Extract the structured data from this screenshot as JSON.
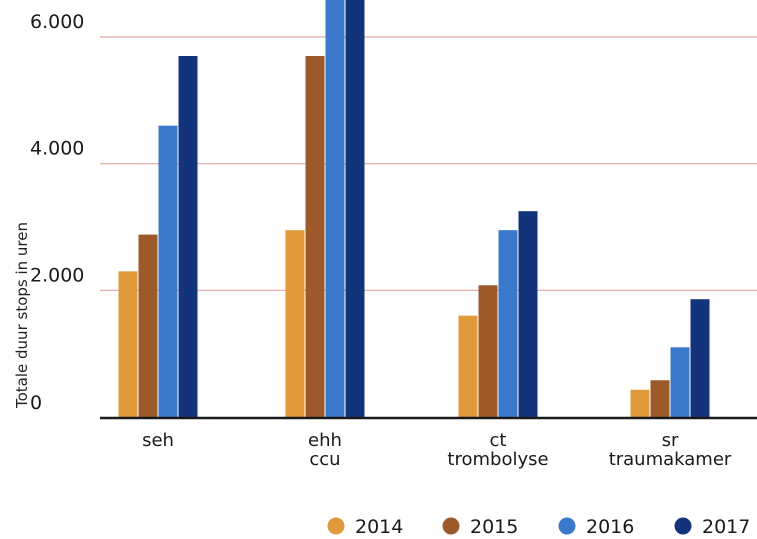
{
  "chart_data": {
    "type": "bar",
    "ylabel": "Totale duur stops in uren",
    "ylim": [
      0,
      6200
    ],
    "yticks": [
      {
        "value": 0,
        "label": "0"
      },
      {
        "value": 2000,
        "label": "2.000"
      },
      {
        "value": 4000,
        "label": "4.000"
      },
      {
        "value": 6000,
        "label": "6.000"
      }
    ],
    "categories": [
      [
        "seh"
      ],
      [
        "ehh",
        "ccu"
      ],
      [
        "ct",
        "trombolyse"
      ],
      [
        "sr",
        "traumakamer"
      ]
    ],
    "series": [
      {
        "name": "2014",
        "color": "#e09a3c",
        "values": [
          2300,
          2950,
          1600,
          430
        ]
      },
      {
        "name": "2015",
        "color": "#9c5a2a",
        "values": [
          2880,
          5700,
          2080,
          580
        ]
      },
      {
        "name": "2016",
        "color": "#3a78cc",
        "values": [
          4600,
          6600,
          2950,
          1100
        ]
      },
      {
        "name": "2017",
        "color": "#13347a",
        "values": [
          5700,
          6600,
          3250,
          1860
        ]
      }
    ],
    "grid": true,
    "grid_color": "#e5a6a6",
    "legend_position": "bottom-right"
  }
}
